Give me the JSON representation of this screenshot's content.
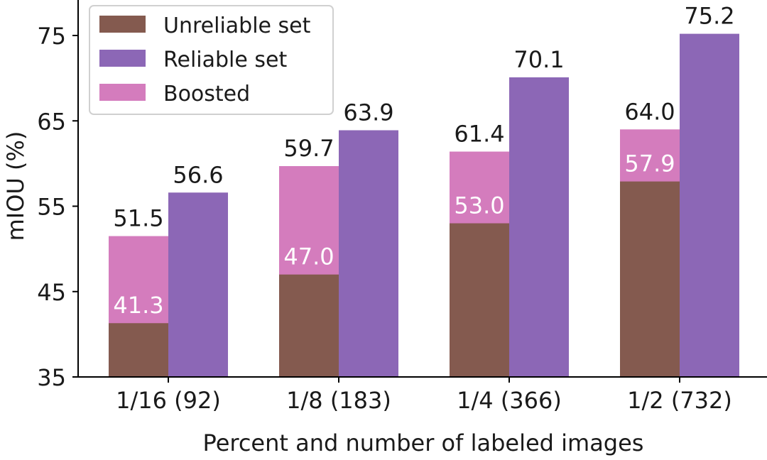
{
  "chart_data": {
    "type": "bar",
    "title": "",
    "xlabel": "Percent and number of labeled images",
    "ylabel": "mIOU (%)",
    "ylim": [
      35,
      79
    ],
    "yticks": [
      "35",
      "45",
      "55",
      "65",
      "75"
    ],
    "categories": [
      "1/16 (92)",
      "1/8 (183)",
      "1/4 (366)",
      "1/2 (732)"
    ],
    "series": [
      {
        "name": "Unreliable set",
        "color": "#845a4f",
        "values": [
          41.3,
          47.0,
          53.0,
          57.9
        ],
        "labels": [
          "41.3",
          "47.0",
          "53.0",
          "57.9"
        ]
      },
      {
        "name": "Reliable set",
        "color": "#8c67b6",
        "values": [
          56.6,
          63.9,
          70.1,
          75.2
        ],
        "labels": [
          "56.6",
          "63.9",
          "70.1",
          "75.2"
        ]
      },
      {
        "name": "Boosted",
        "color": "#d47cbd",
        "values": [
          51.5,
          59.7,
          61.4,
          64.0
        ],
        "labels": [
          "51.5",
          "59.7",
          "61.4",
          "64.0"
        ]
      }
    ],
    "legend": {
      "position": "top-left",
      "entries": [
        "Unreliable set",
        "Reliable set",
        "Boosted"
      ]
    },
    "grid": false
  }
}
